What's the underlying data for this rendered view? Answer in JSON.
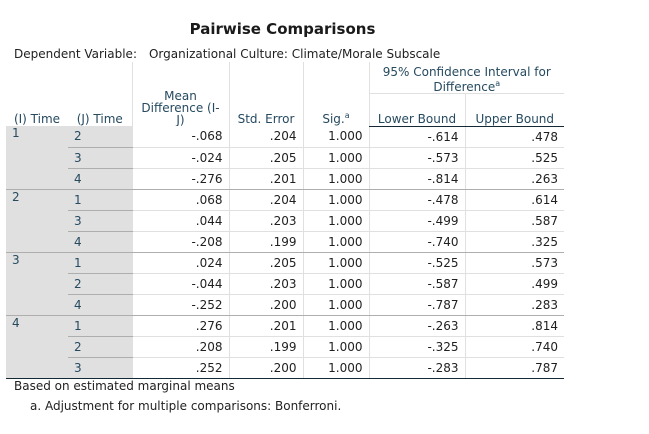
{
  "title": "Pairwise Comparisons",
  "dependent_variable": {
    "label": "Dependent Variable:",
    "value": "Organizational Culture: Climate/Morale Subscale"
  },
  "headers": {
    "i_time": "(I) Time",
    "j_time": "(J) Time",
    "mean_diff_line1": "Mean",
    "mean_diff_line2": "Difference (I-",
    "mean_diff_line3": "J)",
    "std_error": "Std. Error",
    "sig": "Sig.",
    "sig_sup": "a",
    "ci_line1": "95% Confidence Interval for",
    "ci_line2": "Difference",
    "ci_sup": "a",
    "lower": "Lower Bound",
    "upper": "Upper Bound"
  },
  "groups": [
    {
      "i": "1",
      "rows": [
        {
          "j": "2",
          "mean_diff": "-.068",
          "std_error": ".204",
          "sig": "1.000",
          "lower": "-.614",
          "upper": ".478"
        },
        {
          "j": "3",
          "mean_diff": "-.024",
          "std_error": ".205",
          "sig": "1.000",
          "lower": "-.573",
          "upper": ".525"
        },
        {
          "j": "4",
          "mean_diff": "-.276",
          "std_error": ".201",
          "sig": "1.000",
          "lower": "-.814",
          "upper": ".263"
        }
      ]
    },
    {
      "i": "2",
      "rows": [
        {
          "j": "1",
          "mean_diff": ".068",
          "std_error": ".204",
          "sig": "1.000",
          "lower": "-.478",
          "upper": ".614"
        },
        {
          "j": "3",
          "mean_diff": ".044",
          "std_error": ".203",
          "sig": "1.000",
          "lower": "-.499",
          "upper": ".587"
        },
        {
          "j": "4",
          "mean_diff": "-.208",
          "std_error": ".199",
          "sig": "1.000",
          "lower": "-.740",
          "upper": ".325"
        }
      ]
    },
    {
      "i": "3",
      "rows": [
        {
          "j": "1",
          "mean_diff": ".024",
          "std_error": ".205",
          "sig": "1.000",
          "lower": "-.525",
          "upper": ".573"
        },
        {
          "j": "2",
          "mean_diff": "-.044",
          "std_error": ".203",
          "sig": "1.000",
          "lower": "-.587",
          "upper": ".499"
        },
        {
          "j": "4",
          "mean_diff": "-.252",
          "std_error": ".200",
          "sig": "1.000",
          "lower": "-.787",
          "upper": ".283"
        }
      ]
    },
    {
      "i": "4",
      "rows": [
        {
          "j": "1",
          "mean_diff": ".276",
          "std_error": ".201",
          "sig": "1.000",
          "lower": "-.263",
          "upper": ".814"
        },
        {
          "j": "2",
          "mean_diff": ".208",
          "std_error": ".199",
          "sig": "1.000",
          "lower": "-.325",
          "upper": ".740"
        },
        {
          "j": "3",
          "mean_diff": ".252",
          "std_error": ".200",
          "sig": "1.000",
          "lower": "-.283",
          "upper": ".787"
        }
      ]
    }
  ],
  "footnotes": {
    "based_on": "Based on estimated marginal means",
    "adjustment": "a. Adjustment for multiple comparisons: Bonferroni."
  },
  "colors": {
    "header_text": "#264a60",
    "stub_background": "#e0e0e0",
    "rule_dark": "#152935"
  }
}
